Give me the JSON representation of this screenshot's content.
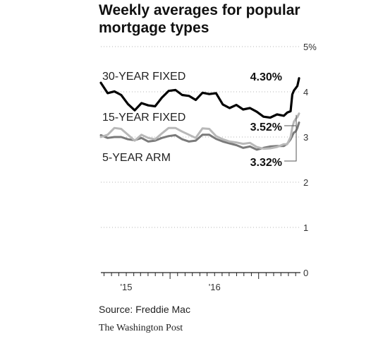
{
  "title": "Weekly averages for popular mortgage types",
  "source": "Source: Freddie Mac",
  "credit": "The Washington Post",
  "chart_data": {
    "type": "line",
    "title": "Weekly averages for popular mortgage types",
    "xlabel": "",
    "ylabel": "",
    "ylim": [
      0,
      5
    ],
    "xlim": [
      "2014-09-18",
      "2016-12-15"
    ],
    "y_ticks": [
      {
        "value": 0,
        "label": "0"
      },
      {
        "value": 1,
        "label": "1"
      },
      {
        "value": 2,
        "label": "2"
      },
      {
        "value": 3,
        "label": "3"
      },
      {
        "value": 4,
        "label": "4"
      },
      {
        "value": 5,
        "label": "5%"
      }
    ],
    "x_ticks": [
      {
        "value": "2015-01-01",
        "label": "'15"
      },
      {
        "value": "2016-01-01",
        "label": "'16"
      }
    ],
    "grid": true,
    "legend": "inline labels",
    "series": [
      {
        "name": "30-YEAR FIXED",
        "color": "#000000",
        "end_label": "4.30%",
        "points": [
          [
            "2014-09-18",
            4.2
          ],
          [
            "2014-10-16",
            3.97
          ],
          [
            "2014-11-13",
            4.01
          ],
          [
            "2014-12-11",
            3.93
          ],
          [
            "2015-01-08",
            3.73
          ],
          [
            "2015-02-05",
            3.59
          ],
          [
            "2015-03-05",
            3.75
          ],
          [
            "2015-04-02",
            3.7
          ],
          [
            "2015-04-30",
            3.68
          ],
          [
            "2015-05-28",
            3.87
          ],
          [
            "2015-06-25",
            4.02
          ],
          [
            "2015-07-23",
            4.04
          ],
          [
            "2015-08-20",
            3.93
          ],
          [
            "2015-09-17",
            3.91
          ],
          [
            "2015-10-15",
            3.82
          ],
          [
            "2015-11-12",
            3.98
          ],
          [
            "2015-12-10",
            3.95
          ],
          [
            "2016-01-07",
            3.97
          ],
          [
            "2016-02-04",
            3.72
          ],
          [
            "2016-03-03",
            3.64
          ],
          [
            "2016-03-31",
            3.71
          ],
          [
            "2016-04-28",
            3.61
          ],
          [
            "2016-05-26",
            3.64
          ],
          [
            "2016-06-23",
            3.56
          ],
          [
            "2016-07-21",
            3.45
          ],
          [
            "2016-08-18",
            3.43
          ],
          [
            "2016-09-15",
            3.5
          ],
          [
            "2016-10-13",
            3.47
          ],
          [
            "2016-10-27",
            3.54
          ],
          [
            "2016-11-10",
            3.57
          ],
          [
            "2016-11-17",
            3.94
          ],
          [
            "2016-11-24",
            4.03
          ],
          [
            "2016-12-01",
            4.08
          ],
          [
            "2016-12-08",
            4.13
          ],
          [
            "2016-12-15",
            4.3
          ]
        ]
      },
      {
        "name": "15-YEAR FIXED",
        "color": "#b8b8b8",
        "end_label": "3.52%",
        "points": [
          [
            "2014-09-18",
            3.0
          ],
          [
            "2014-10-16",
            3.05
          ],
          [
            "2014-11-13",
            3.2
          ],
          [
            "2014-12-11",
            3.18
          ],
          [
            "2015-01-08",
            3.05
          ],
          [
            "2015-02-05",
            2.92
          ],
          [
            "2015-03-05",
            3.05
          ],
          [
            "2015-04-02",
            2.98
          ],
          [
            "2015-04-30",
            2.95
          ],
          [
            "2015-05-28",
            3.08
          ],
          [
            "2015-06-25",
            3.2
          ],
          [
            "2015-07-23",
            3.2
          ],
          [
            "2015-08-20",
            3.12
          ],
          [
            "2015-09-17",
            3.05
          ],
          [
            "2015-10-15",
            2.98
          ],
          [
            "2015-11-12",
            3.19
          ],
          [
            "2015-12-10",
            3.18
          ],
          [
            "2016-01-07",
            3.02
          ],
          [
            "2016-02-04",
            2.95
          ],
          [
            "2016-03-03",
            2.9
          ],
          [
            "2016-03-31",
            2.88
          ],
          [
            "2016-04-28",
            2.85
          ],
          [
            "2016-05-26",
            2.87
          ],
          [
            "2016-06-23",
            2.78
          ],
          [
            "2016-07-21",
            2.74
          ],
          [
            "2016-08-18",
            2.75
          ],
          [
            "2016-09-15",
            2.78
          ],
          [
            "2016-10-13",
            2.84
          ],
          [
            "2016-10-27",
            2.84
          ],
          [
            "2016-11-10",
            3.0
          ],
          [
            "2016-11-17",
            3.21
          ],
          [
            "2016-11-24",
            3.34
          ],
          [
            "2016-12-01",
            3.4
          ],
          [
            "2016-12-08",
            3.44
          ],
          [
            "2016-12-15",
            3.52
          ]
        ]
      },
      {
        "name": "5-YEAR ARM",
        "color": "#7a7a7a",
        "end_label": "3.32%",
        "points": [
          [
            "2014-09-18",
            3.04
          ],
          [
            "2014-10-16",
            2.98
          ],
          [
            "2014-11-13",
            3.0
          ],
          [
            "2014-12-11",
            3.0
          ],
          [
            "2015-01-08",
            2.95
          ],
          [
            "2015-02-05",
            2.93
          ],
          [
            "2015-03-05",
            2.98
          ],
          [
            "2015-04-02",
            2.9
          ],
          [
            "2015-04-30",
            2.92
          ],
          [
            "2015-05-28",
            2.98
          ],
          [
            "2015-06-25",
            3.02
          ],
          [
            "2015-07-23",
            3.04
          ],
          [
            "2015-08-20",
            2.95
          ],
          [
            "2015-09-17",
            2.9
          ],
          [
            "2015-10-15",
            2.92
          ],
          [
            "2015-11-12",
            3.05
          ],
          [
            "2015-12-10",
            3.05
          ],
          [
            "2016-01-07",
            2.96
          ],
          [
            "2016-02-04",
            2.9
          ],
          [
            "2016-03-03",
            2.86
          ],
          [
            "2016-03-31",
            2.82
          ],
          [
            "2016-04-28",
            2.76
          ],
          [
            "2016-05-26",
            2.79
          ],
          [
            "2016-06-23",
            2.72
          ],
          [
            "2016-07-21",
            2.76
          ],
          [
            "2016-08-18",
            2.79
          ],
          [
            "2016-09-15",
            2.8
          ],
          [
            "2016-10-13",
            2.8
          ],
          [
            "2016-10-27",
            2.85
          ],
          [
            "2016-11-10",
            2.95
          ],
          [
            "2016-11-17",
            3.03
          ],
          [
            "2016-11-24",
            3.1
          ],
          [
            "2016-12-01",
            3.12
          ],
          [
            "2016-12-08",
            3.2
          ],
          [
            "2016-12-15",
            3.32
          ]
        ]
      }
    ]
  }
}
